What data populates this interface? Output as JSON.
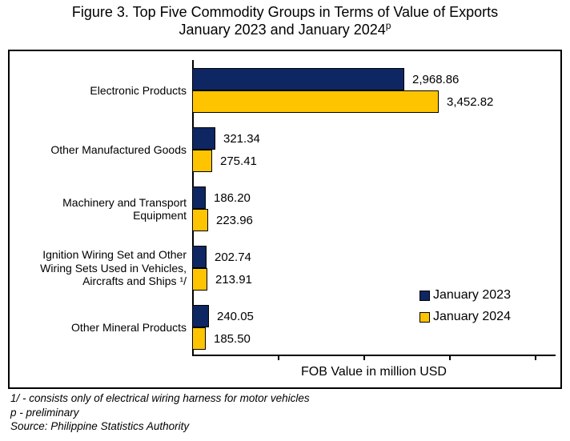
{
  "chart_data": {
    "type": "bar",
    "orientation": "horizontal",
    "title_line1": "Figure 3. Top Five Commodity Groups in Terms of Value of Exports",
    "title_line2": "January 2023 and January 2024",
    "title_superscript": "p",
    "categories": [
      {
        "name": "Electronic Products",
        "label_lines": [
          "Electronic Products"
        ]
      },
      {
        "name": "Other Manufactured Goods",
        "label_lines": [
          "Other Manufactured Goods"
        ]
      },
      {
        "name": "Machinery and Transport Equipment",
        "label_lines": [
          "Machinery and Transport",
          "Equipment"
        ]
      },
      {
        "name": "Ignition Wiring Set and Other Wiring Sets Used in Vehicles, Aircrafts and Ships 1/",
        "label_lines": [
          "Ignition Wiring Set and Other",
          "Wiring Sets Used in Vehicles,",
          "Aircrafts and Ships ¹/"
        ]
      },
      {
        "name": "Other Mineral Products",
        "label_lines": [
          "Other Mineral Products"
        ]
      }
    ],
    "series": [
      {
        "name": "January 2023",
        "color": "#0E2763",
        "values": [
          2968.86,
          321.34,
          186.2,
          202.74,
          240.05
        ]
      },
      {
        "name": "January 2024",
        "color": "#FFC400",
        "values": [
          3452.82,
          275.41,
          223.96,
          213.91,
          185.5
        ]
      }
    ],
    "xlabel": "FOB Value in million USD",
    "xlim": [
      0,
      5067
    ],
    "x_ticks": [
      1200,
      2400,
      3600,
      4800
    ],
    "x_tick_labels_visible": false,
    "grid": false,
    "legend_position": "inside-right",
    "bar_border_color": "#000000",
    "value_labels_visible": true
  },
  "footnotes": {
    "line1": "1/ - consists only of electrical wiring harness for motor vehicles",
    "line2": "p - preliminary",
    "line3": "Source: Philippine Statistics Authority"
  }
}
